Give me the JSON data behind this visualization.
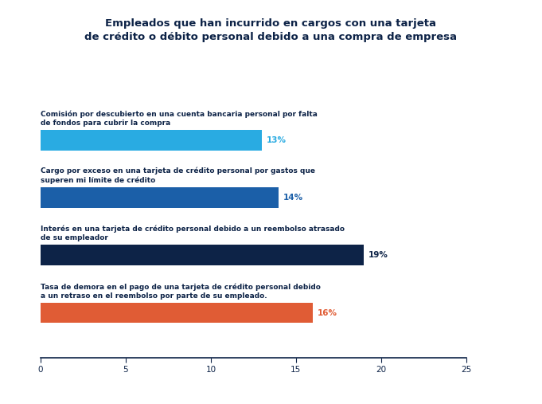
{
  "title_line1": "Empleados que han incurrido en cargos con una tarjeta",
  "title_line2": "de crédito o débito personal debido a una compra de empresa",
  "bars": [
    {
      "label_line1": "Comisión por descubierto en una cuenta bancaria personal por falta",
      "label_line2": "de fondos para cubrir la compra",
      "value": 13,
      "color": "#29ABE2",
      "pct": "13%",
      "pct_color": "#29ABE2"
    },
    {
      "label_line1": "Cargo por exceso en una tarjeta de crédito personal por gastos que",
      "label_line2": "superen mi límite de crédito",
      "value": 14,
      "color": "#1B5FA8",
      "pct": "14%",
      "pct_color": "#1B5FA8"
    },
    {
      "label_line1": "Interés en una tarjeta de crédito personal debido a un reembolso atrasado",
      "label_line2": "de su empleador",
      "value": 19,
      "color": "#0D2347",
      "pct": "19%",
      "pct_color": "#0D2347"
    },
    {
      "label_line1": "Tasa de demora en el pago de una tarjeta de crédito personal debido",
      "label_line2": "a un retraso en el reembolso por parte de su empleado.",
      "value": 16,
      "color": "#E05C35",
      "pct": "16%",
      "pct_color": "#E05C35"
    }
  ],
  "xlim": [
    0,
    25
  ],
  "xticks": [
    0,
    5,
    10,
    15,
    20,
    25
  ],
  "bar_height": 0.32,
  "background_color": "#FFFFFF",
  "title_color": "#0D2347",
  "label_fontsize": 6.5,
  "pct_fontsize": 7.5,
  "title_fontsize": 9.5,
  "tick_fontsize": 7.5,
  "label_color": "#0D2347"
}
